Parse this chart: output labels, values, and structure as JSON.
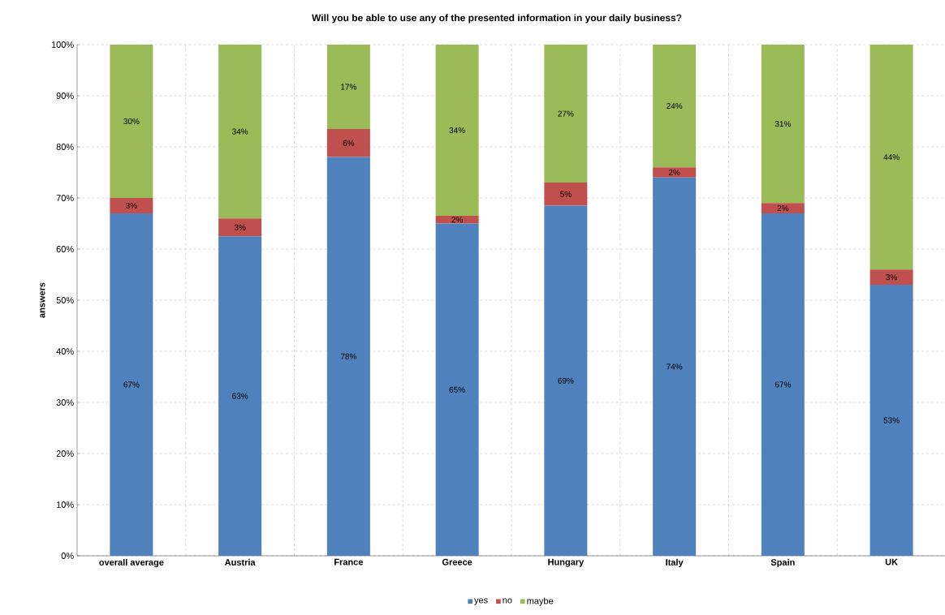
{
  "chart_data": {
    "type": "bar",
    "stacked": true,
    "title": "Will you be able to use any of the presented information  in your daily business?",
    "ylabel": "answers",
    "categories": [
      "overall average",
      "Austria",
      "France",
      "Greece",
      "Hungary",
      "Italy",
      "Spain",
      "UK"
    ],
    "series": [
      {
        "name": "yes",
        "color": "#4f81bd",
        "values": [
          67,
          62.5,
          78,
          65,
          68.5,
          74,
          67,
          53
        ],
        "value_labels": [
          "67%",
          "63%",
          "78%",
          "65%",
          "69%",
          "74%",
          "67%",
          "53%"
        ]
      },
      {
        "name": "no",
        "color": "#c0504d",
        "values": [
          3,
          3.5,
          5.5,
          1.5,
          4.5,
          2,
          2,
          3
        ],
        "value_labels": [
          "3%",
          "3%",
          "6%",
          "2%",
          "5%",
          "2%",
          "2%",
          "3%"
        ]
      },
      {
        "name": "maybe",
        "color": "#9bbb59",
        "values": [
          30,
          34,
          16.5,
          33.5,
          27,
          24,
          31,
          44
        ],
        "value_labels": [
          "30%",
          "34%",
          "17%",
          "34%",
          "27%",
          "24%",
          "31%",
          "44%"
        ]
      }
    ],
    "ylim": [
      0,
      100
    ],
    "yticks": [
      {
        "value": 0,
        "label": "0%"
      },
      {
        "value": 10,
        "label": "10%"
      },
      {
        "value": 20,
        "label": "20%"
      },
      {
        "value": 30,
        "label": "30%"
      },
      {
        "value": 40,
        "label": "40%"
      },
      {
        "value": 50,
        "label": "50%"
      },
      {
        "value": 60,
        "label": "60%"
      },
      {
        "value": 70,
        "label": "70%"
      },
      {
        "value": 80,
        "label": "80%"
      },
      {
        "value": 90,
        "label": "90%"
      },
      {
        "value": 100,
        "label": "100%"
      }
    ],
    "grid": true,
    "legend": "bottom"
  }
}
